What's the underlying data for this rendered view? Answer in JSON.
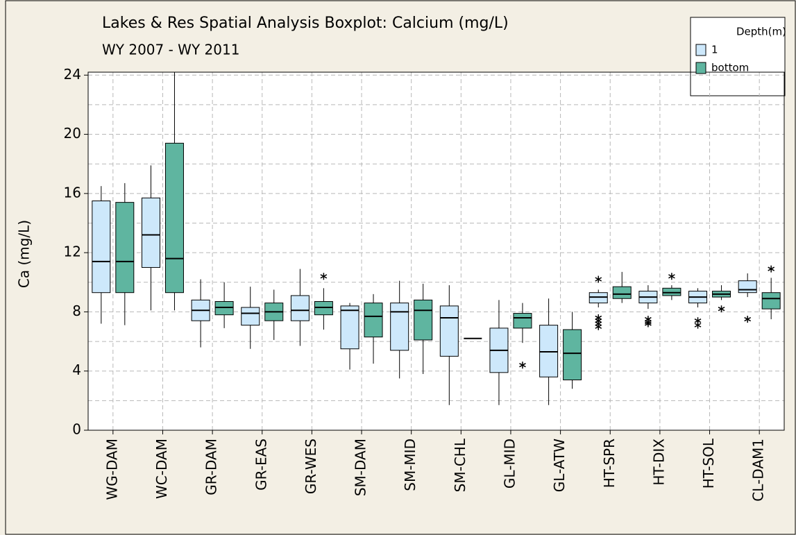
{
  "chart_data": {
    "type": "boxplot",
    "title": "Lakes & Res Spatial Analysis Boxplot: Calcium (mg/L)",
    "subtitle": "WY 2007 - WY 2011",
    "y_label": "Ca (mg/L)",
    "legend_title": "Depth(m)",
    "legend_position": "upper right",
    "grid": true,
    "ylim": [
      0,
      24.2
    ],
    "yticks": [
      0,
      4,
      8,
      12,
      16,
      20,
      24
    ],
    "y_minor_grid": [
      2,
      6,
      10,
      14,
      18,
      22
    ],
    "categories": [
      "WG-DAM",
      "WC-DAM",
      "GR-DAM",
      "GR-EAS",
      "GR-WES",
      "SM-DAM",
      "SM-MID",
      "SM-CHL",
      "GL-MID",
      "GL-ATW",
      "HT-SPR",
      "HT-DIX",
      "HT-SOL",
      "CL-DAM1"
    ],
    "series": [
      {
        "name": "1",
        "color": "#cde8fb",
        "boxes": [
          {
            "low": 7.2,
            "q1": 9.3,
            "median": 11.4,
            "q3": 15.5,
            "high": 16.5,
            "outliers": []
          },
          {
            "low": 8.1,
            "q1": 11.0,
            "median": 13.2,
            "q3": 15.7,
            "high": 17.9,
            "outliers": []
          },
          {
            "low": 5.6,
            "q1": 7.4,
            "median": 8.1,
            "q3": 8.8,
            "high": 10.2,
            "outliers": []
          },
          {
            "low": 5.5,
            "q1": 7.1,
            "median": 7.9,
            "q3": 8.3,
            "high": 9.7,
            "outliers": []
          },
          {
            "low": 5.7,
            "q1": 7.4,
            "median": 8.1,
            "q3": 9.1,
            "high": 10.9,
            "outliers": []
          },
          {
            "low": 4.1,
            "q1": 5.5,
            "median": 8.1,
            "q3": 8.4,
            "high": 8.6,
            "outliers": []
          },
          {
            "low": 3.5,
            "q1": 5.4,
            "median": 8.0,
            "q3": 8.6,
            "high": 10.1,
            "outliers": []
          },
          {
            "low": 1.7,
            "q1": 5.0,
            "median": 7.6,
            "q3": 8.4,
            "high": 9.8,
            "outliers": []
          },
          {
            "low": 1.7,
            "q1": 3.9,
            "median": 5.4,
            "q3": 6.9,
            "high": 8.8,
            "outliers": []
          },
          {
            "low": 1.7,
            "q1": 3.6,
            "median": 5.3,
            "q3": 7.1,
            "high": 8.9,
            "outliers": []
          },
          {
            "low": 8.3,
            "q1": 8.6,
            "median": 9.0,
            "q3": 9.3,
            "high": 9.5,
            "outliers": [
              10.2,
              7.6,
              7.4,
              7.2,
              7.0
            ]
          },
          {
            "low": 8.2,
            "q1": 8.6,
            "median": 9.0,
            "q3": 9.4,
            "high": 9.8,
            "outliers": [
              7.5,
              7.3,
              7.2
            ]
          },
          {
            "low": 8.3,
            "q1": 8.6,
            "median": 9.0,
            "q3": 9.4,
            "high": 9.6,
            "outliers": [
              7.4,
              7.1
            ]
          },
          {
            "low": 9.0,
            "q1": 9.3,
            "median": 9.5,
            "q3": 10.1,
            "high": 10.6,
            "outliers": [
              7.5
            ]
          }
        ]
      },
      {
        "name": "bottom",
        "color": "#5fb5a0",
        "boxes": [
          {
            "low": 7.1,
            "q1": 9.3,
            "median": 11.4,
            "q3": 15.4,
            "high": 16.7,
            "outliers": []
          },
          {
            "low": 8.1,
            "q1": 9.3,
            "median": 11.6,
            "q3": 19.4,
            "high": 24.2,
            "outliers": []
          },
          {
            "low": 6.9,
            "q1": 7.8,
            "median": 8.3,
            "q3": 8.7,
            "high": 10.0,
            "outliers": []
          },
          {
            "low": 6.1,
            "q1": 7.4,
            "median": 8.0,
            "q3": 8.6,
            "high": 9.5,
            "outliers": []
          },
          {
            "low": 6.8,
            "q1": 7.8,
            "median": 8.3,
            "q3": 8.7,
            "high": 9.6,
            "outliers": [
              10.4
            ]
          },
          {
            "low": 4.5,
            "q1": 6.3,
            "median": 7.7,
            "q3": 8.6,
            "high": 9.2,
            "outliers": []
          },
          {
            "low": 3.8,
            "q1": 6.1,
            "median": 8.1,
            "q3": 8.8,
            "high": 9.9,
            "outliers": []
          },
          {
            "low": 6.2,
            "q1": 6.2,
            "median": 6.2,
            "q3": 6.2,
            "high": 6.2,
            "outliers": []
          },
          {
            "low": 5.9,
            "q1": 6.9,
            "median": 7.6,
            "q3": 7.9,
            "high": 8.6,
            "outliers": [
              4.4
            ]
          },
          {
            "low": 2.8,
            "q1": 3.4,
            "median": 5.2,
            "q3": 6.8,
            "high": 8.0,
            "outliers": []
          },
          {
            "low": 8.6,
            "q1": 8.9,
            "median": 9.2,
            "q3": 9.7,
            "high": 10.7,
            "outliers": []
          },
          {
            "low": 8.8,
            "q1": 9.1,
            "median": 9.3,
            "q3": 9.6,
            "high": 9.8,
            "outliers": [
              10.4
            ]
          },
          {
            "low": 8.8,
            "q1": 9.0,
            "median": 9.2,
            "q3": 9.4,
            "high": 9.8,
            "outliers": [
              8.2
            ]
          },
          {
            "low": 7.5,
            "q1": 8.2,
            "median": 8.9,
            "q3": 9.3,
            "high": 10.3,
            "outliers": [
              10.9
            ]
          }
        ]
      }
    ]
  }
}
